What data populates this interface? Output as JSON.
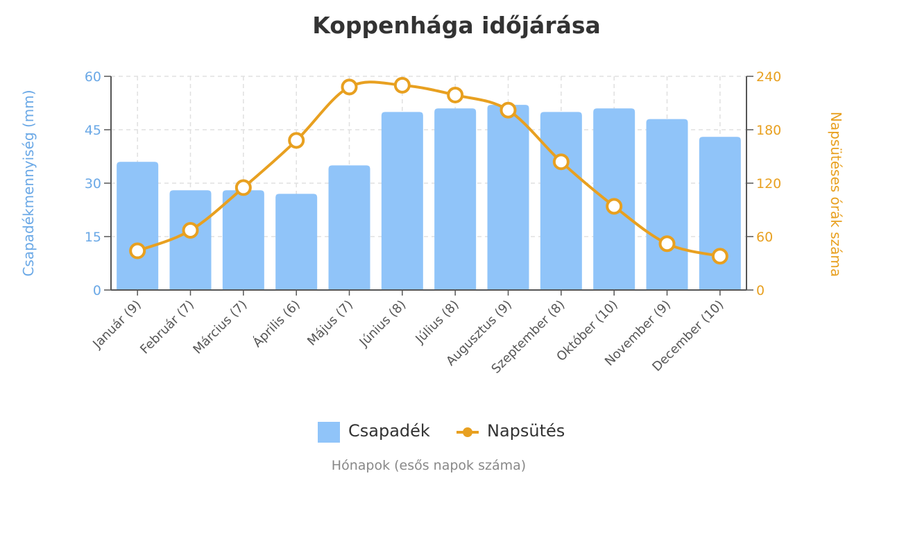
{
  "chart_data": {
    "type": "bar+line",
    "title": "Koppenhága időjárása",
    "xlabel": "Hónapok (esős napok száma)",
    "ylabel_left": "Csapadékmennyiség (mm)",
    "ylabel_right": "Napsütéses órák száma",
    "categories": [
      "Január (9)",
      "Február (7)",
      "Március (7)",
      "Április (6)",
      "Május (7)",
      "Június (8)",
      "Július (8)",
      "Augusztus (9)",
      "Szeptember (8)",
      "Október (10)",
      "November (9)",
      "December (10)"
    ],
    "ylim_left": [
      0,
      60
    ],
    "yticks_left": [
      "0",
      "15",
      "30",
      "45",
      "60"
    ],
    "ylim_right": [
      0,
      240
    ],
    "yticks_right": [
      "0",
      "60",
      "120",
      "180",
      "240"
    ],
    "grid": true,
    "legend_position": "bottom",
    "series": [
      {
        "name": "Csapadék",
        "type": "bar",
        "axis": "left",
        "color": "#90c4f9",
        "values": [
          36,
          28,
          28,
          27,
          35,
          50,
          51,
          52,
          50,
          51,
          48,
          43
        ]
      },
      {
        "name": "Napsütés",
        "type": "line",
        "axis": "right",
        "color": "#e8a020",
        "values": [
          44,
          67,
          115,
          168,
          228,
          230,
          219,
          202,
          144,
          94,
          52,
          38
        ]
      }
    ],
    "colors": {
      "left_axis": "#6aa8e6",
      "right_axis": "#e8a020",
      "title": "#333333"
    }
  }
}
